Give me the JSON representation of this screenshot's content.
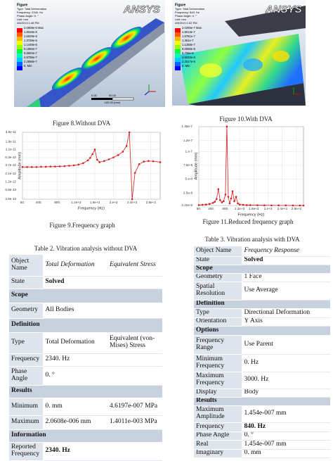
{
  "figure8": {
    "caption": "Figure 8.Without DVA",
    "image": {
      "title": "Figure",
      "lines": [
        "Type: Total Deformation",
        "Frequency: 2340. Hz",
        "Phase Angle: 0. °",
        "Unit: mm",
        "4/6/2013 1:48 PM"
      ],
      "legend": [
        "2.0608e-6 Max",
        "1.8318e-6",
        "1.6029e-6",
        "1.3739e-6",
        "1.1449e-6",
        "9.1592e-7",
        "6.8694e-7",
        "4.5796e-7",
        "2.2898e-7",
        "0. Min"
      ],
      "logo": "ANSYS",
      "scale": [
        "0.00",
        "100.00 (mm)",
        "50.00"
      ]
    }
  },
  "figure9": {
    "caption": "Figure 9.Frequency graph",
    "chart": {
      "type": "line",
      "x_label": "Frequency (Hz)",
      "y_label": "Amplitude (mm)",
      "color": "#d42020",
      "grid": true,
      "ylog": true,
      "xlim": [
        50,
        3000
      ],
      "ylim": [
        3.6e-13,
        3.6e-11
      ],
      "xticks": [
        {
          "value": 50,
          "label": "50."
        },
        {
          "value": 400,
          "label": "400."
        },
        {
          "value": 800,
          "label": "800."
        },
        {
          "value": 1200,
          "label": "1.2e+3"
        },
        {
          "value": 1600,
          "label": "1.6e+3"
        },
        {
          "value": 2000,
          "label": "2.e+3"
        },
        {
          "value": 2400,
          "label": "2.4e+3"
        },
        {
          "value": 2800,
          "label": "2.8e+3"
        }
      ],
      "yticks": [
        3.6e-11,
        1.9e-11,
        1.1e-11,
        6.3e-12,
        3.7e-12,
        2.1e-12,
        1.2e-12,
        6.8e-13,
        3.6e-13
      ],
      "x": [
        50,
        150,
        250,
        350,
        450,
        550,
        650,
        750,
        850,
        950,
        1050,
        1150,
        1250,
        1350,
        1450,
        1500,
        1550,
        1600,
        1650,
        1700,
        1800,
        1900,
        2000,
        2100,
        2200,
        2280,
        2340,
        2400,
        2460,
        2550,
        2650,
        2750,
        2850,
        3000
      ],
      "values": [
        3.3e-12,
        3.3e-12,
        3.3e-12,
        3.3e-12,
        3.35e-12,
        3.35e-12,
        3.4e-12,
        3.4e-12,
        3.45e-12,
        3.5e-12,
        3.6e-12,
        3.7e-12,
        3.9e-12,
        4.3e-12,
        5.2e-12,
        6.2e-12,
        8e-12,
        1.1e-11,
        5.5e-12,
        4.6e-12,
        5e-12,
        5.6e-12,
        6.4e-12,
        7.5e-12,
        9.5e-12,
        1.4e-11,
        3.6e-11,
        3.6e-13,
        2.2e-12,
        4e-12,
        4.8e-12,
        5e-12,
        4.9e-12,
        4.6e-12
      ]
    }
  },
  "figure10": {
    "caption": "Figure 10.With DVA",
    "image": {
      "title": "Figure",
      "lines": [
        "Type: Total Deformation",
        "Frequency: 840. Hz",
        "Phase Angle: 0. °",
        "Unit: mm",
        "4/6/2013 1:52 PM"
      ],
      "legend": [
        "2.0265e-7 Max",
        "1.8013e-7",
        "1.5761e-7",
        "1.351e-7",
        "1.1258e-7",
        "9.0066e-8",
        "6.755e-8",
        "4.5033e-8",
        "2.2517e-8",
        "0. Min"
      ],
      "logo": "ANSYS"
    }
  },
  "figure11": {
    "caption": "Figure 11.Reduced frequency graph",
    "chart": {
      "type": "line",
      "x_label": "Frequency (Hz)",
      "y_label": "Amplitude (mm)",
      "color": "#d42020",
      "grid": true,
      "ylog": false,
      "xlim": [
        50,
        3000
      ],
      "ylim": [
        2.22e-09,
        1.45e-07
      ],
      "xticks": [
        {
          "value": 50,
          "label": "50."
        },
        {
          "value": 400,
          "label": "400."
        },
        {
          "value": 800,
          "label": "800."
        },
        {
          "value": 1200,
          "label": "1.2e+3"
        },
        {
          "value": 1600,
          "label": "1.6e+3"
        },
        {
          "value": 2000,
          "label": "2.e+3"
        },
        {
          "value": 2400,
          "label": "2.4e+3"
        },
        {
          "value": 2800,
          "label": "2.8e+3"
        }
      ],
      "yticks": [
        1.45e-07,
        1.2e-07,
        {
          "value": 1e-07,
          "label": "1.e-7"
        },
        7.5e-08,
        {
          "value": 5e-08,
          "label": "5.e-8"
        },
        2.5e-08,
        2.22e-09
      ],
      "x": [
        50,
        150,
        250,
        350,
        450,
        500,
        550,
        600,
        650,
        700,
        750,
        800,
        840,
        880,
        920,
        960,
        1000,
        1050,
        1100,
        1150,
        1200,
        1300,
        1400,
        1500,
        1700,
        1900,
        2100,
        2300,
        2500,
        2700,
        2900,
        3000
      ],
      "values": [
        3e-09,
        3.5e-09,
        4e-09,
        5e-09,
        7e-09,
        9e-09,
        1.4e-08,
        3.2e-08,
        1.2e-08,
        8e-09,
        1e-08,
        2.2e-08,
        1.454e-07,
        1.8e-08,
        6e-09,
        1.5e-08,
        2.8e-08,
        1e-08,
        1.8e-08,
        6e-09,
        4e-09,
        3.5e-09,
        3e-09,
        3e-09,
        2.8e-09,
        2.6e-09,
        2.5e-09,
        2.4e-09,
        2.4e-09,
        2.3e-09,
        2.3e-09,
        2.22e-09
      ]
    }
  },
  "table2": {
    "caption": "Table 2. Vibration analysis without DVA",
    "rows": [
      [
        "Object Name",
        "Total Deformation",
        "Equivalent Stress"
      ],
      [
        "State",
        "Solved"
      ],
      [
        "Scope"
      ],
      [
        "Geometry",
        "All Bodies"
      ],
      [
        "Definition"
      ],
      [
        "Type",
        "Total Deformation",
        "Equivalent (von-Mises) Stress"
      ],
      [
        "Frequency",
        "2340. Hz"
      ],
      [
        "Phase Angle",
        "0. °"
      ],
      [
        "Results"
      ],
      [
        "Minimum",
        "0. mm",
        "4.6197e-007 MPa"
      ],
      [
        "Maximum",
        "2.0608e-006 mm",
        "1.4011e-003 MPa"
      ],
      [
        "Information"
      ],
      [
        "Reported Frequency",
        "2340. Hz"
      ]
    ]
  },
  "table3": {
    "caption": "Table 3. Vibration analysis with DVA",
    "rows": [
      [
        "Object Name",
        "Frequency Response"
      ],
      [
        "State",
        "Solved"
      ],
      [
        "Scope"
      ],
      [
        "Geometry",
        "1 Face"
      ],
      [
        "Spatial Resolution",
        "Use Average"
      ],
      [
        "Definition"
      ],
      [
        "Type",
        "Directional Deformation"
      ],
      [
        "Orientation",
        "Y Axis"
      ],
      [
        "Options"
      ],
      [
        "Frequency Range",
        "Use Parent"
      ],
      [
        "Minimum Frequency",
        "0. Hz"
      ],
      [
        "Maximum Frequency",
        "3000. Hz"
      ],
      [
        "Display",
        "Body"
      ],
      [
        "Results"
      ],
      [
        "Maximum Amplitude",
        "1.454e-007 mm"
      ],
      [
        "Frequency",
        "840. Hz"
      ],
      [
        "Phase Angle",
        "0. °"
      ],
      [
        "Real",
        "1.454e-007 mm"
      ],
      [
        "Imaginary",
        "0. mm"
      ]
    ]
  }
}
